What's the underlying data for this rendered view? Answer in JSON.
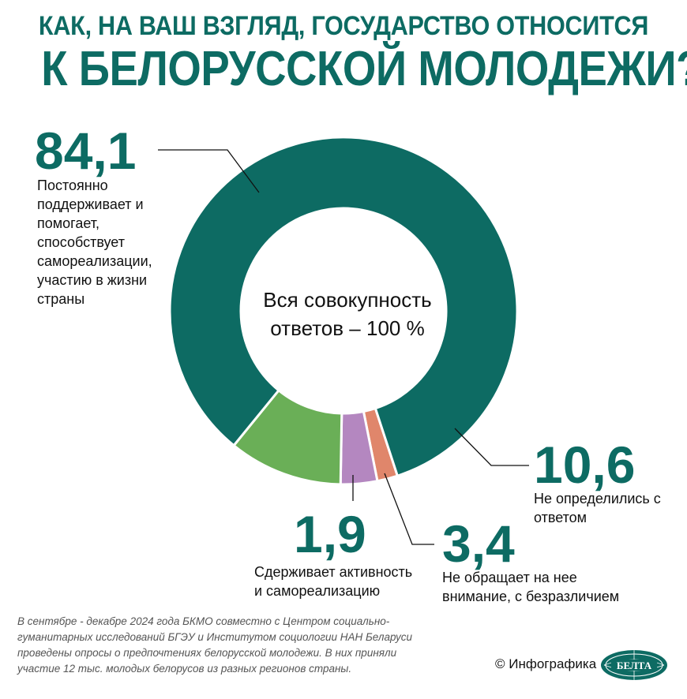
{
  "title": {
    "line1": "КАК, НА ВАШ ВЗГЛЯД, ГОСУДАРСТВО ОТНОСИТСЯ",
    "line2": "К БЕЛОРУССКОЙ МОЛОДЕЖИ?"
  },
  "center_label": {
    "line1": "Вся совокупность",
    "line2": "ответов – 100 %"
  },
  "chart_data": {
    "type": "pie",
    "title": "КАК, НА ВАШ ВЗГЛЯД, ГОСУДАРСТВО ОТНОСИТСЯ К БЕЛОРУССКОЙ МОЛОДЕЖИ?",
    "unit": "%",
    "slices": [
      {
        "value": 84.1,
        "value_label": "84,1",
        "label_lines": [
          "Постоянно",
          "поддерживает и",
          "помогает,",
          "способствует",
          "самореализации,",
          "участию в жизни",
          "страны"
        ],
        "color": "#0d6b63"
      },
      {
        "value": 10.6,
        "value_label": "10,6",
        "label_lines": [
          "Не определились с",
          "ответом"
        ],
        "color": "#6aaf57"
      },
      {
        "value": 3.4,
        "value_label": "3,4",
        "label_lines": [
          "Не обращает на нее",
          "внимание, с безразличием"
        ],
        "color": "#b487c0"
      },
      {
        "value": 1.9,
        "value_label": "1,9",
        "label_lines": [
          "Сдерживает активность",
          "и самореализацию"
        ],
        "color": "#e0866b"
      }
    ]
  },
  "footnote": "В сентябре - декабре 2024 года БКМО совместно с Центром социально-гуманитарных исследований БГЭУ и Институтом социологии НАН Беларуси проведены опросы о предпочтениях белорусской молодежи. В них приняли участие 12 тыс. молодых белорусов из разных регионов страны.",
  "credit": "© Инфографика",
  "logo_text": "БЕЛТА",
  "colors": {
    "accent": "#0d6b63",
    "logo": "#0d6b63"
  }
}
